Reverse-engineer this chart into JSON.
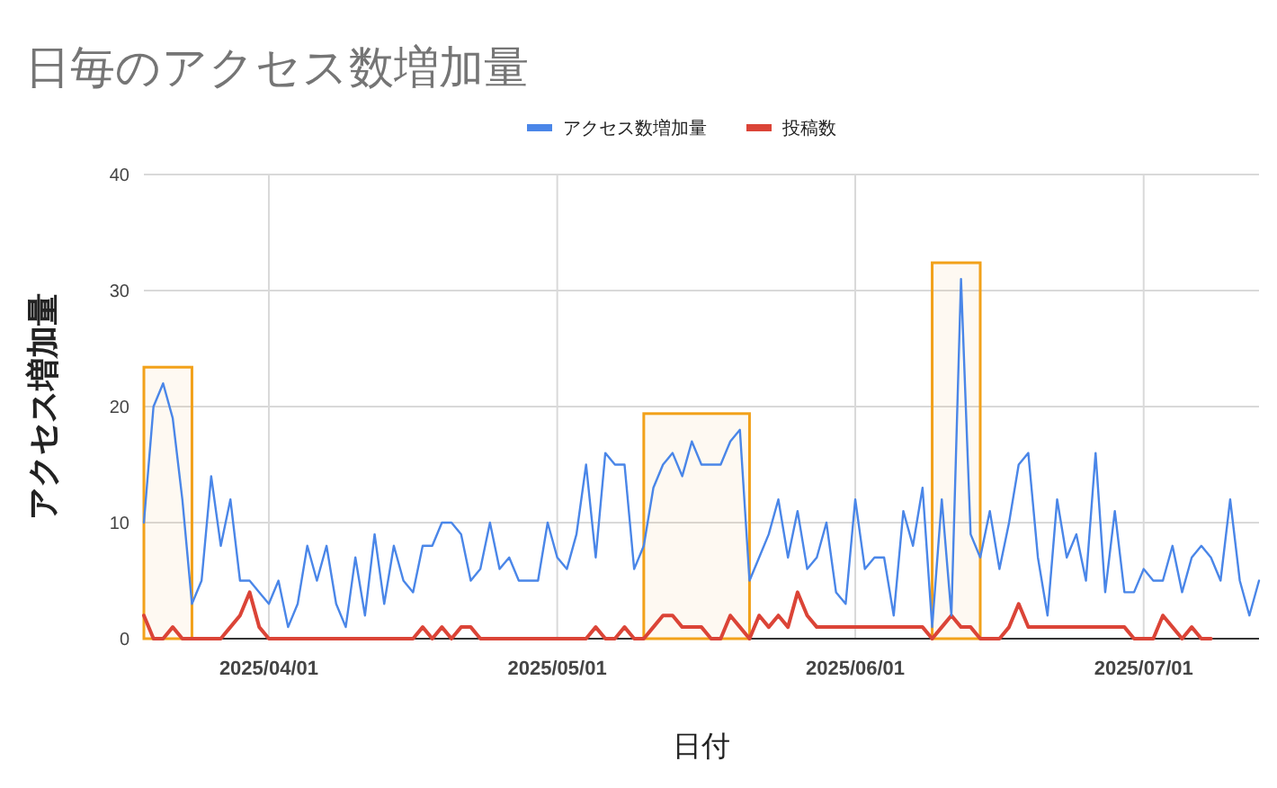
{
  "chart_data": {
    "type": "line",
    "title": "日毎のアクセス数増加量",
    "xlabel": "日付",
    "ylabel": "アクセス増加量",
    "x": [
      "2025-03-19",
      "2025-03-20",
      "2025-03-21",
      "2025-03-22",
      "2025-03-23",
      "2025-03-24",
      "2025-03-25",
      "2025-03-26",
      "2025-03-27",
      "2025-03-28",
      "2025-03-29",
      "2025-03-30",
      "2025-03-31",
      "2025-04-01",
      "2025-04-02",
      "2025-04-03",
      "2025-04-04",
      "2025-04-05",
      "2025-04-06",
      "2025-04-07",
      "2025-04-08",
      "2025-04-09",
      "2025-04-10",
      "2025-04-11",
      "2025-04-12",
      "2025-04-13",
      "2025-04-14",
      "2025-04-15",
      "2025-04-16",
      "2025-04-17",
      "2025-04-18",
      "2025-04-19",
      "2025-04-20",
      "2025-04-21",
      "2025-04-22",
      "2025-04-23",
      "2025-04-24",
      "2025-04-25",
      "2025-04-26",
      "2025-04-27",
      "2025-04-28",
      "2025-04-29",
      "2025-04-30",
      "2025-05-01",
      "2025-05-02",
      "2025-05-03",
      "2025-05-04",
      "2025-05-05",
      "2025-05-06",
      "2025-05-07",
      "2025-05-08",
      "2025-05-09",
      "2025-05-10",
      "2025-05-11",
      "2025-05-12",
      "2025-05-13",
      "2025-05-14",
      "2025-05-15",
      "2025-05-16",
      "2025-05-17",
      "2025-05-18",
      "2025-05-19",
      "2025-05-20",
      "2025-05-21",
      "2025-05-22",
      "2025-05-23",
      "2025-05-24",
      "2025-05-25",
      "2025-05-26",
      "2025-05-27",
      "2025-05-28",
      "2025-05-29",
      "2025-05-30",
      "2025-05-31",
      "2025-06-01",
      "2025-06-02",
      "2025-06-03",
      "2025-06-04",
      "2025-06-05",
      "2025-06-06",
      "2025-06-07",
      "2025-06-08",
      "2025-06-09",
      "2025-06-10",
      "2025-06-11",
      "2025-06-12",
      "2025-06-13",
      "2025-06-14",
      "2025-06-15",
      "2025-06-16",
      "2025-06-17",
      "2025-06-18",
      "2025-06-19",
      "2025-06-20",
      "2025-06-21",
      "2025-06-22",
      "2025-06-23",
      "2025-06-24",
      "2025-06-25",
      "2025-06-26",
      "2025-06-27",
      "2025-06-28",
      "2025-06-29",
      "2025-06-30",
      "2025-07-01",
      "2025-07-02",
      "2025-07-03",
      "2025-07-04",
      "2025-07-05",
      "2025-07-06",
      "2025-07-07",
      "2025-07-08",
      "2025-07-09",
      "2025-07-10",
      "2025-07-11",
      "2025-07-12",
      "2025-07-13"
    ],
    "series": [
      {
        "name": "アクセス数増加量",
        "color": "#4a86e8",
        "values": [
          10,
          20,
          22,
          19,
          12,
          3,
          5,
          14,
          8,
          12,
          5,
          5,
          4,
          3,
          5,
          1,
          3,
          8,
          5,
          8,
          3,
          1,
          7,
          2,
          9,
          3,
          8,
          5,
          4,
          8,
          8,
          10,
          10,
          9,
          5,
          6,
          10,
          6,
          7,
          5,
          5,
          5,
          10,
          7,
          6,
          9,
          15,
          7,
          16,
          15,
          15,
          6,
          8,
          13,
          15,
          16,
          14,
          17,
          15,
          15,
          15,
          17,
          18,
          5,
          7,
          9,
          12,
          7,
          11,
          6,
          7,
          10,
          4,
          3,
          12,
          6,
          7,
          7,
          2,
          11,
          8,
          13,
          1,
          12,
          2,
          31,
          9,
          7,
          11,
          6,
          10,
          15,
          16,
          7,
          2,
          12,
          7,
          9,
          5,
          16,
          4,
          11,
          4,
          4,
          6,
          5,
          5,
          8,
          4,
          7,
          8,
          7,
          5,
          12,
          5,
          2,
          5
        ]
      },
      {
        "name": "投稿数",
        "color": "#db4437",
        "values": [
          2,
          0,
          0,
          1,
          0,
          0,
          0,
          0,
          0,
          1,
          2,
          4,
          1,
          0,
          0,
          0,
          0,
          0,
          0,
          0,
          0,
          0,
          0,
          0,
          0,
          0,
          0,
          0,
          0,
          1,
          0,
          1,
          0,
          1,
          1,
          0,
          0,
          0,
          0,
          0,
          0,
          0,
          0,
          0,
          0,
          0,
          0,
          1,
          0,
          0,
          1,
          0,
          0,
          1,
          2,
          2,
          1,
          1,
          1,
          0,
          0,
          2,
          1,
          0,
          2,
          1,
          2,
          1,
          4,
          2,
          1,
          1,
          1,
          1,
          1,
          1,
          1,
          1,
          1,
          1,
          1,
          1,
          0,
          1,
          2,
          1,
          1,
          0,
          0,
          0,
          1,
          3,
          1,
          1,
          1,
          1,
          1,
          1,
          1,
          1,
          1,
          1,
          1,
          0,
          0,
          0,
          2,
          1,
          0,
          1,
          0,
          0,
          null,
          null,
          null,
          null,
          null
        ]
      }
    ],
    "xlim": [
      "2025-03-19",
      "2025-07-13"
    ],
    "xticks": [
      {
        "value": "2025-04-01",
        "label": "2025/04/01"
      },
      {
        "value": "2025-05-01",
        "label": "2025/05/01"
      },
      {
        "value": "2025-06-01",
        "label": "2025/06/01"
      },
      {
        "value": "2025-07-01",
        "label": "2025/07/01"
      }
    ],
    "ylim": [
      0,
      40
    ],
    "yticks": [
      0,
      10,
      20,
      30,
      40
    ],
    "grid": true,
    "legend": "top",
    "marker": "none",
    "line_style": "solid",
    "bands": [
      {
        "axis": "x",
        "from": "2025-03-19",
        "to": "2025-03-24",
        "color": "#f2a11a"
      },
      {
        "axis": "x",
        "from": "2025-05-10",
        "to": "2025-05-21",
        "color": "#f2a11a"
      },
      {
        "axis": "x",
        "from": "2025-06-09",
        "to": "2025-06-14",
        "color": "#f2a11a"
      }
    ]
  }
}
